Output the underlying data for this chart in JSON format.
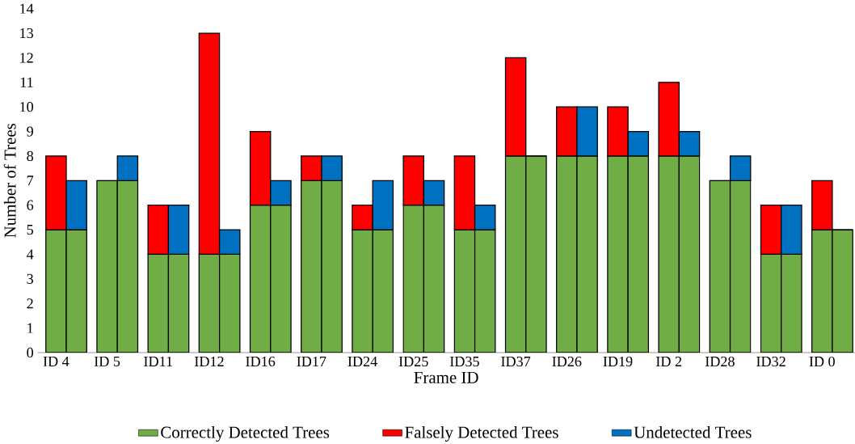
{
  "chart_data": {
    "type": "bar",
    "stacked": true,
    "xlabel": "Frame ID",
    "ylabel": "Number of Trees",
    "categories": [
      "ID 4",
      null,
      "ID 5",
      null,
      "ID11",
      null,
      "ID12",
      null,
      "ID16",
      null,
      "ID17",
      null,
      "ID24",
      null,
      "ID25",
      null,
      "ID35",
      null,
      "ID37",
      null,
      "ID26",
      null,
      "ID19",
      null,
      "ID 2",
      null,
      "ID28",
      null,
      "ID32",
      null,
      "ID 0",
      null
    ],
    "series": [
      {
        "name": "Correctly Detected Trees",
        "color": "#70ad47",
        "values": [
          5,
          5,
          7,
          7,
          4,
          4,
          4,
          4,
          6,
          6,
          7,
          7,
          5,
          5,
          6,
          6,
          5,
          5,
          8,
          8,
          8,
          8,
          8,
          8,
          8,
          8,
          7,
          7,
          4,
          4,
          5,
          5
        ]
      },
      {
        "name": "Falsely Detected Trees",
        "color": "#ff0000",
        "values": [
          3,
          null,
          0,
          null,
          2,
          null,
          9,
          null,
          3,
          null,
          1,
          null,
          1,
          null,
          2,
          null,
          3,
          null,
          4,
          null,
          2,
          null,
          2,
          null,
          3,
          null,
          0,
          null,
          2,
          null,
          2,
          null
        ]
      },
      {
        "name": "Undetected Trees",
        "color": "#0070c0",
        "values": [
          null,
          2,
          null,
          1,
          null,
          2,
          null,
          1,
          null,
          1,
          null,
          1,
          null,
          2,
          null,
          1,
          null,
          1,
          null,
          0,
          null,
          2,
          null,
          1,
          null,
          1,
          null,
          1,
          null,
          2,
          null,
          0
        ]
      }
    ],
    "ylim": [
      0,
      14
    ],
    "yticks": [
      0,
      1,
      2,
      3,
      4,
      5,
      6,
      7,
      8,
      9,
      10,
      11,
      12,
      13,
      14
    ],
    "legend": "bottom",
    "grid": false
  }
}
